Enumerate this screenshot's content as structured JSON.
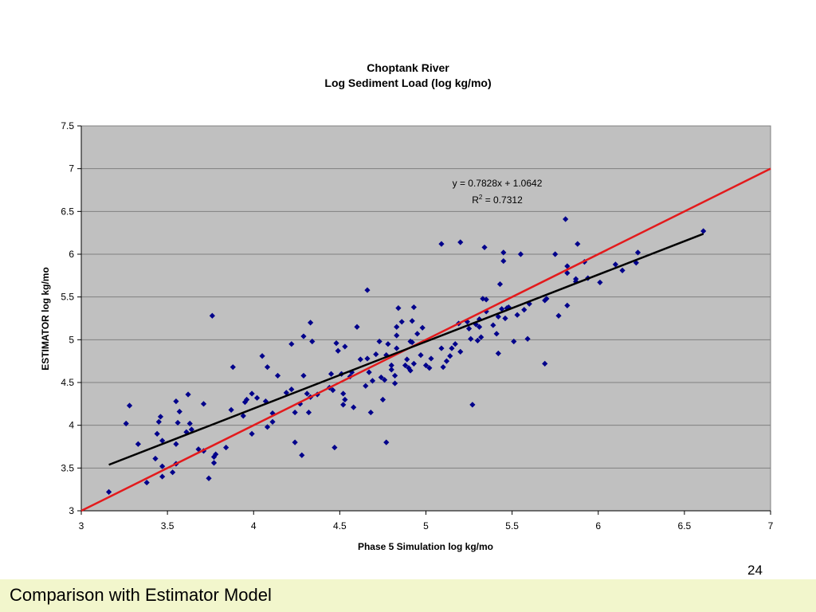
{
  "chart_data": {
    "type": "scatter",
    "title_line1": "Choptank River",
    "title_line2": "Log Sediment Load (log kg/mo)",
    "xlabel": "Phase 5 Simulation log kg/mo",
    "ylabel": "ESTIMATOR log kg/mo",
    "xlim": [
      3,
      7
    ],
    "ylim": [
      3,
      7.5
    ],
    "xticks": [
      "3",
      "3.5",
      "4",
      "4.5",
      "5",
      "5.5",
      "6",
      "6.5",
      "7"
    ],
    "yticks": [
      "3",
      "3.5",
      "4",
      "4.5",
      "5",
      "5.5",
      "6",
      "6.5",
      "7",
      "7.5"
    ],
    "grid": true,
    "annotation_equation": "y = 0.7828x + 1.0642",
    "annotation_r_base": "R",
    "annotation_r_sup": "2",
    "annotation_r_rest": " = 0.7312",
    "trendline": {
      "slope": 0.7828,
      "intercept": 1.0642,
      "x_range": [
        3.16,
        6.61
      ],
      "color": "#000000"
    },
    "one_to_one_line": {
      "x_range": [
        3,
        7
      ],
      "color": "#e31a1c"
    },
    "point_color": "#00008b",
    "plot_background": "#c0c0c0",
    "points": [
      [
        3.16,
        3.22
      ],
      [
        3.26,
        4.02
      ],
      [
        3.28,
        4.23
      ],
      [
        3.33,
        3.78
      ],
      [
        3.38,
        3.33
      ],
      [
        3.43,
        3.61
      ],
      [
        3.44,
        3.9
      ],
      [
        3.45,
        4.04
      ],
      [
        3.46,
        4.1
      ],
      [
        3.47,
        3.4
      ],
      [
        3.47,
        3.52
      ],
      [
        3.47,
        3.82
      ],
      [
        3.53,
        3.45
      ],
      [
        3.55,
        3.55
      ],
      [
        3.55,
        3.78
      ],
      [
        3.56,
        4.03
      ],
      [
        3.55,
        4.28
      ],
      [
        3.57,
        4.16
      ],
      [
        3.61,
        3.92
      ],
      [
        3.62,
        4.36
      ],
      [
        3.63,
        4.02
      ],
      [
        3.64,
        3.95
      ],
      [
        3.68,
        3.72
      ],
      [
        3.71,
        3.7
      ],
      [
        3.71,
        4.25
      ],
      [
        3.74,
        3.38
      ],
      [
        3.76,
        5.28
      ],
      [
        3.77,
        3.56
      ],
      [
        3.77,
        3.63
      ],
      [
        3.78,
        3.66
      ],
      [
        3.84,
        3.74
      ],
      [
        3.87,
        4.18
      ],
      [
        3.88,
        4.68
      ],
      [
        3.94,
        4.11
      ],
      [
        3.95,
        4.27
      ],
      [
        3.96,
        4.3
      ],
      [
        3.99,
        4.37
      ],
      [
        3.99,
        3.9
      ],
      [
        4.02,
        4.32
      ],
      [
        4.05,
        4.81
      ],
      [
        4.07,
        4.28
      ],
      [
        4.08,
        4.68
      ],
      [
        4.08,
        3.98
      ],
      [
        4.11,
        4.14
      ],
      [
        4.11,
        4.04
      ],
      [
        4.14,
        4.58
      ],
      [
        4.19,
        4.38
      ],
      [
        4.22,
        4.42
      ],
      [
        4.22,
        4.95
      ],
      [
        4.24,
        3.8
      ],
      [
        4.24,
        4.15
      ],
      [
        4.27,
        4.25
      ],
      [
        4.28,
        3.65
      ],
      [
        4.29,
        4.58
      ],
      [
        4.29,
        5.04
      ],
      [
        4.31,
        4.37
      ],
      [
        4.32,
        4.15
      ],
      [
        4.33,
        4.33
      ],
      [
        4.33,
        5.2
      ],
      [
        4.34,
        4.98
      ],
      [
        4.37,
        4.36
      ],
      [
        4.44,
        4.44
      ],
      [
        4.45,
        4.6
      ],
      [
        4.46,
        4.41
      ],
      [
        4.47,
        3.74
      ],
      [
        4.48,
        4.96
      ],
      [
        4.49,
        4.87
      ],
      [
        4.51,
        4.6
      ],
      [
        4.52,
        4.24
      ],
      [
        4.52,
        4.37
      ],
      [
        4.53,
        4.92
      ],
      [
        4.53,
        4.3
      ],
      [
        4.56,
        4.57
      ],
      [
        4.57,
        4.62
      ],
      [
        4.58,
        4.21
      ],
      [
        4.6,
        5.15
      ],
      [
        4.62,
        4.77
      ],
      [
        4.65,
        4.46
      ],
      [
        4.66,
        4.78
      ],
      [
        4.66,
        5.58
      ],
      [
        4.67,
        4.62
      ],
      [
        4.68,
        4.15
      ],
      [
        4.69,
        4.52
      ],
      [
        4.71,
        4.83
      ],
      [
        4.73,
        4.98
      ],
      [
        4.74,
        4.56
      ],
      [
        4.75,
        4.3
      ],
      [
        4.76,
        4.53
      ],
      [
        4.77,
        3.8
      ],
      [
        4.77,
        4.82
      ],
      [
        4.78,
        4.95
      ],
      [
        4.8,
        4.7
      ],
      [
        4.8,
        4.65
      ],
      [
        4.82,
        4.58
      ],
      [
        4.82,
        4.49
      ],
      [
        4.83,
        5.15
      ],
      [
        4.83,
        4.9
      ],
      [
        4.83,
        5.05
      ],
      [
        4.84,
        5.37
      ],
      [
        4.86,
        5.21
      ],
      [
        4.88,
        4.7
      ],
      [
        4.89,
        4.77
      ],
      [
        4.9,
        4.67
      ],
      [
        4.91,
        4.64
      ],
      [
        4.91,
        4.98
      ],
      [
        4.92,
        4.97
      ],
      [
        4.92,
        5.22
      ],
      [
        4.93,
        5.38
      ],
      [
        4.93,
        4.72
      ],
      [
        4.95,
        5.07
      ],
      [
        4.97,
        4.82
      ],
      [
        4.98,
        5.14
      ],
      [
        5.0,
        4.7
      ],
      [
        5.02,
        4.67
      ],
      [
        5.03,
        4.78
      ],
      [
        5.09,
        6.12
      ],
      [
        5.09,
        4.9
      ],
      [
        5.1,
        4.68
      ],
      [
        5.12,
        4.75
      ],
      [
        5.14,
        4.81
      ],
      [
        5.15,
        4.9
      ],
      [
        5.17,
        4.95
      ],
      [
        5.2,
        6.14
      ],
      [
        5.19,
        5.19
      ],
      [
        5.2,
        4.86
      ],
      [
        5.24,
        5.21
      ],
      [
        5.25,
        5.13
      ],
      [
        5.26,
        5.01
      ],
      [
        5.27,
        4.24
      ],
      [
        5.29,
        5.18
      ],
      [
        5.3,
        4.99
      ],
      [
        5.31,
        5.15
      ],
      [
        5.31,
        5.24
      ],
      [
        5.32,
        5.03
      ],
      [
        5.33,
        5.48
      ],
      [
        5.34,
        6.08
      ],
      [
        5.35,
        5.47
      ],
      [
        5.35,
        5.33
      ],
      [
        5.39,
        5.17
      ],
      [
        5.41,
        5.07
      ],
      [
        5.42,
        5.27
      ],
      [
        5.42,
        4.84
      ],
      [
        5.43,
        5.65
      ],
      [
        5.44,
        5.36
      ],
      [
        5.45,
        6.02
      ],
      [
        5.45,
        5.92
      ],
      [
        5.46,
        5.25
      ],
      [
        5.47,
        5.37
      ],
      [
        5.48,
        5.38
      ],
      [
        5.51,
        4.98
      ],
      [
        5.53,
        5.29
      ],
      [
        5.55,
        6.0
      ],
      [
        5.57,
        5.35
      ],
      [
        5.59,
        5.01
      ],
      [
        5.6,
        5.42
      ],
      [
        5.69,
        4.72
      ],
      [
        5.69,
        5.46
      ],
      [
        5.7,
        5.48
      ],
      [
        5.75,
        6.0
      ],
      [
        5.77,
        5.28
      ],
      [
        5.81,
        6.41
      ],
      [
        5.82,
        5.4
      ],
      [
        5.82,
        5.78
      ],
      [
        5.82,
        5.86
      ],
      [
        5.87,
        5.68
      ],
      [
        5.87,
        5.71
      ],
      [
        5.88,
        6.12
      ],
      [
        5.92,
        5.91
      ],
      [
        5.94,
        5.72
      ],
      [
        6.01,
        5.67
      ],
      [
        6.1,
        5.88
      ],
      [
        6.14,
        5.81
      ],
      [
        6.22,
        5.9
      ],
      [
        6.23,
        6.02
      ],
      [
        6.61,
        6.27
      ]
    ]
  },
  "footer": {
    "title": "Comparison with Estimator Model",
    "page_number": "24"
  }
}
